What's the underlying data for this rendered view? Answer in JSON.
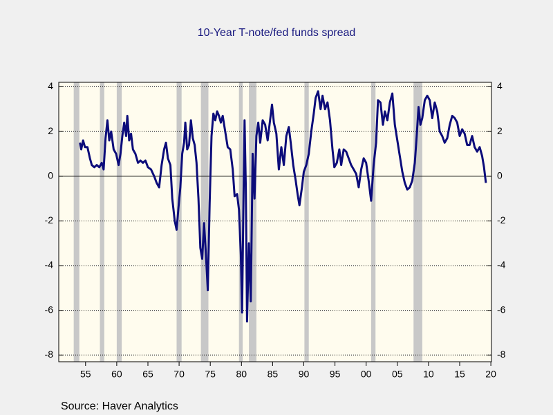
{
  "chart_data": {
    "type": "line",
    "title": "10-Year T-note/fed funds spread",
    "source": "Source:  Haver Analytics",
    "x": [
      1954.1,
      1954.3,
      1954.6,
      1954.9,
      1955.3,
      1955.7,
      1956.0,
      1956.4,
      1956.8,
      1957.2,
      1957.6,
      1957.9,
      1958.2,
      1958.5,
      1958.8,
      1959.1,
      1959.5,
      1959.9,
      1960.3,
      1960.6,
      1960.9,
      1961.2,
      1961.5,
      1961.7,
      1962.0,
      1962.3,
      1962.6,
      1963.0,
      1963.4,
      1963.8,
      1964.2,
      1964.6,
      1965.0,
      1965.5,
      1966.0,
      1966.4,
      1966.8,
      1967.2,
      1967.6,
      1967.9,
      1968.2,
      1968.6,
      1968.9,
      1969.3,
      1969.6,
      1969.9,
      1970.2,
      1970.5,
      1970.8,
      1971.0,
      1971.3,
      1971.6,
      1971.9,
      1972.2,
      1972.5,
      1972.8,
      1973.1,
      1973.4,
      1973.7,
      1974.0,
      1974.3,
      1974.6,
      1974.9,
      1975.2,
      1975.5,
      1975.8,
      1976.1,
      1976.4,
      1976.7,
      1977.0,
      1977.4,
      1977.8,
      1978.2,
      1978.6,
      1978.9,
      1979.3,
      1979.6,
      1979.9,
      1980.1,
      1980.3,
      1980.5,
      1980.7,
      1980.9,
      1981.2,
      1981.5,
      1981.8,
      1982.1,
      1982.4,
      1982.7,
      1983.0,
      1983.4,
      1983.8,
      1984.2,
      1984.5,
      1984.9,
      1985.2,
      1985.6,
      1986.0,
      1986.4,
      1986.8,
      1987.2,
      1987.6,
      1987.9,
      1988.3,
      1988.7,
      1989.0,
      1989.3,
      1989.7,
      1990.0,
      1990.4,
      1990.8,
      1991.2,
      1991.6,
      1991.9,
      1992.3,
      1992.7,
      1993.0,
      1993.4,
      1993.8,
      1994.2,
      1994.6,
      1994.9,
      1995.3,
      1995.7,
      1996.0,
      1996.4,
      1996.8,
      1997.2,
      1997.6,
      1998.0,
      1998.4,
      1998.8,
      1999.2,
      1999.6,
      2000.0,
      2000.4,
      2000.8,
      2001.2,
      2001.6,
      2001.9,
      2002.3,
      2002.7,
      2003.0,
      2003.4,
      2003.8,
      2004.2,
      2004.6,
      2005.0,
      2005.4,
      2005.8,
      2006.2,
      2006.6,
      2007.0,
      2007.4,
      2007.8,
      2008.1,
      2008.4,
      2008.7,
      2009.0,
      2009.4,
      2009.8,
      2010.2,
      2010.6,
      2011.0,
      2011.4,
      2011.8,
      2012.2,
      2012.6,
      2013.0,
      2013.4,
      2013.8,
      2014.2,
      2014.6,
      2015.0,
      2015.4,
      2015.8,
      2016.2,
      2016.6,
      2017.0,
      2017.4,
      2017.8,
      2018.2,
      2018.6,
      2018.9,
      2019.2
    ],
    "series": [
      {
        "color": "#0c0c7a",
        "values": [
          1.5,
          1.2,
          1.6,
          1.3,
          1.3,
          0.8,
          0.5,
          0.4,
          0.5,
          0.4,
          0.6,
          0.3,
          1.7,
          2.5,
          1.6,
          2.0,
          1.2,
          1.0,
          0.5,
          1.0,
          1.8,
          2.4,
          1.8,
          2.7,
          1.6,
          1.9,
          1.2,
          1.0,
          0.6,
          0.7,
          0.6,
          0.7,
          0.4,
          0.3,
          0.0,
          -0.3,
          -0.5,
          0.5,
          1.2,
          1.5,
          0.8,
          0.5,
          -1.0,
          -2.0,
          -2.4,
          -1.4,
          -0.5,
          1.0,
          1.5,
          2.4,
          1.2,
          1.4,
          2.5,
          1.7,
          1.4,
          0.6,
          -1.0,
          -3.2,
          -3.7,
          -2.1,
          -3.5,
          -5.1,
          -1.2,
          1.8,
          2.8,
          2.5,
          2.9,
          2.7,
          2.4,
          2.7,
          2.0,
          1.3,
          1.2,
          0.3,
          -0.9,
          -0.8,
          -1.5,
          -3.5,
          -6.1,
          -1.6,
          2.5,
          -0.5,
          -6.5,
          -3.0,
          -5.6,
          1.0,
          -1.0,
          1.8,
          2.4,
          1.5,
          2.5,
          2.3,
          1.6,
          2.3,
          3.2,
          2.4,
          1.9,
          0.3,
          1.3,
          0.5,
          1.8,
          2.2,
          1.5,
          0.5,
          -0.2,
          -0.8,
          -1.3,
          -0.5,
          0.2,
          0.5,
          1.0,
          2.0,
          2.8,
          3.5,
          3.8,
          3.0,
          3.6,
          3.0,
          3.3,
          2.5,
          1.2,
          0.4,
          0.6,
          1.2,
          0.5,
          1.2,
          1.1,
          0.8,
          0.5,
          0.3,
          0.1,
          -0.5,
          0.3,
          0.8,
          0.6,
          -0.2,
          -1.1,
          0.5,
          1.5,
          3.4,
          3.3,
          2.3,
          2.9,
          2.5,
          3.3,
          3.7,
          2.3,
          1.6,
          0.9,
          0.2,
          -0.3,
          -0.6,
          -0.5,
          -0.2,
          0.6,
          1.8,
          3.1,
          2.3,
          2.6,
          3.4,
          3.6,
          3.4,
          2.6,
          3.3,
          2.9,
          2.0,
          1.8,
          1.5,
          1.7,
          2.3,
          2.7,
          2.6,
          2.4,
          1.8,
          2.1,
          1.9,
          1.4,
          1.4,
          1.8,
          1.3,
          1.1,
          1.3,
          0.9,
          0.4,
          -0.3
        ]
      }
    ],
    "recessions": [
      [
        1953.1,
        1954.0
      ],
      [
        1957.3,
        1958.0
      ],
      [
        1960.0,
        1960.8
      ],
      [
        1969.6,
        1970.4
      ],
      [
        1973.5,
        1974.7
      ],
      [
        1979.6,
        1980.2
      ],
      [
        1981.2,
        1982.4
      ],
      [
        1990.1,
        1990.8
      ],
      [
        2000.8,
        2001.5
      ],
      [
        2007.6,
        2009.0
      ]
    ],
    "recession_color": "#c8c8c8",
    "xlim": [
      1950.7,
      2020.1
    ],
    "xticks": [
      {
        "value": 1955,
        "label": "55"
      },
      {
        "value": 1960,
        "label": "60"
      },
      {
        "value": 1965,
        "label": "65"
      },
      {
        "value": 1970,
        "label": "70"
      },
      {
        "value": 1975,
        "label": "75"
      },
      {
        "value": 1980,
        "label": "80"
      },
      {
        "value": 1985,
        "label": "85"
      },
      {
        "value": 1990,
        "label": "90"
      },
      {
        "value": 1995,
        "label": "95"
      },
      {
        "value": 2000,
        "label": "00"
      },
      {
        "value": 2005,
        "label": "05"
      },
      {
        "value": 2010,
        "label": "10"
      },
      {
        "value": 2015,
        "label": "15"
      },
      {
        "value": 2020,
        "label": "20"
      }
    ],
    "ylim": [
      -8.3,
      4.2
    ],
    "yticks": [
      -8,
      -6,
      -4,
      -2,
      0,
      2,
      4
    ],
    "y2lim": [
      -8.3,
      4.2
    ],
    "y2ticks": [
      -8,
      -6,
      -4,
      -2,
      0,
      2,
      4
    ],
    "grid": true
  }
}
